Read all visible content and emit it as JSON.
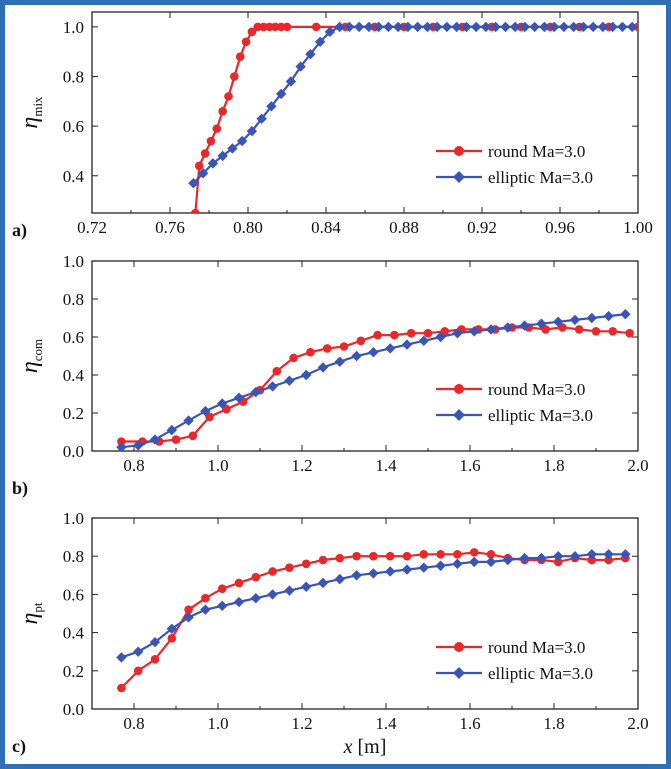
{
  "colors": {
    "round": "#e8282b",
    "elliptic": "#3a55b4",
    "frame": "#2f6fb5"
  },
  "chart_data": [
    {
      "panel_label": "a)",
      "type": "line",
      "ylabel": {
        "symbol": "η",
        "subscript": "mix"
      },
      "xlabel": "",
      "xlim": [
        0.72,
        1.0
      ],
      "ylim": [
        0.25,
        1.06
      ],
      "xticks": [
        "0.72",
        "0.76",
        "0.80",
        "0.84",
        "0.88",
        "0.92",
        "0.96",
        "1.00"
      ],
      "yticks": [
        "0.4",
        "0.6",
        "0.8",
        "1.0"
      ],
      "legend": {
        "position": "bottom-right",
        "entries": [
          "round Ma=3.0",
          "elliptic Ma=3.0"
        ]
      },
      "series": [
        {
          "name": "round Ma=3.0",
          "marker": "circle",
          "x": [
            0.773,
            0.775,
            0.778,
            0.781,
            0.784,
            0.787,
            0.79,
            0.793,
            0.796,
            0.799,
            0.802,
            0.805,
            0.808,
            0.811,
            0.814,
            0.817,
            0.82,
            0.835,
            0.85,
            0.865,
            0.88,
            0.895,
            0.91,
            0.925,
            0.94,
            0.955,
            0.97,
            0.985,
            1.0
          ],
          "y": [
            0.25,
            0.44,
            0.49,
            0.54,
            0.59,
            0.66,
            0.72,
            0.8,
            0.88,
            0.94,
            0.98,
            1.0,
            1.0,
            1.0,
            1.0,
            1.0,
            1.0,
            1.0,
            1.0,
            1.0,
            1.0,
            1.0,
            1.0,
            1.0,
            1.0,
            1.0,
            1.0,
            1.0,
            1.0
          ]
        },
        {
          "name": "elliptic Ma=3.0",
          "marker": "diamond",
          "x": [
            0.772,
            0.777,
            0.782,
            0.787,
            0.792,
            0.797,
            0.802,
            0.807,
            0.812,
            0.817,
            0.822,
            0.827,
            0.832,
            0.837,
            0.842,
            0.847,
            0.852,
            0.857,
            0.862,
            0.867,
            0.872,
            0.877,
            0.882,
            0.887,
            0.892,
            0.897,
            0.902,
            0.907,
            0.912,
            0.917,
            0.922,
            0.927,
            0.932,
            0.937,
            0.942,
            0.947,
            0.952,
            0.957,
            0.962,
            0.967,
            0.972,
            0.977,
            0.982,
            0.987,
            0.992,
            0.997
          ],
          "y": [
            0.37,
            0.41,
            0.45,
            0.48,
            0.51,
            0.54,
            0.58,
            0.63,
            0.68,
            0.73,
            0.78,
            0.84,
            0.89,
            0.94,
            0.98,
            1.0,
            1.0,
            1.0,
            1.0,
            1.0,
            1.0,
            1.0,
            1.0,
            1.0,
            1.0,
            1.0,
            1.0,
            1.0,
            1.0,
            1.0,
            1.0,
            1.0,
            1.0,
            1.0,
            1.0,
            1.0,
            1.0,
            1.0,
            1.0,
            1.0,
            1.0,
            1.0,
            1.0,
            1.0,
            1.0,
            1.0
          ]
        }
      ]
    },
    {
      "panel_label": "b)",
      "type": "line",
      "ylabel": {
        "symbol": "η",
        "subscript": "com"
      },
      "xlabel": "",
      "xlim": [
        0.7,
        2.0
      ],
      "ylim": [
        0.0,
        1.0
      ],
      "xticks": [
        "0.8",
        "1.0",
        "1.2",
        "1.4",
        "1.6",
        "1.8",
        "2.0"
      ],
      "yticks": [
        "0.0",
        "0.2",
        "0.4",
        "0.6",
        "0.8",
        "1.0"
      ],
      "legend": {
        "position": "bottom-right",
        "entries": [
          "round Ma=3.0",
          "elliptic Ma=3.0"
        ]
      },
      "series": [
        {
          "name": "round Ma=3.0",
          "marker": "circle",
          "x": [
            0.77,
            0.82,
            0.86,
            0.9,
            0.94,
            0.98,
            1.02,
            1.06,
            1.1,
            1.14,
            1.18,
            1.22,
            1.26,
            1.3,
            1.34,
            1.38,
            1.42,
            1.46,
            1.5,
            1.54,
            1.58,
            1.62,
            1.66,
            1.7,
            1.74,
            1.78,
            1.82,
            1.86,
            1.9,
            1.94,
            1.98
          ],
          "y": [
            0.05,
            0.05,
            0.05,
            0.06,
            0.08,
            0.18,
            0.22,
            0.26,
            0.32,
            0.42,
            0.49,
            0.52,
            0.54,
            0.55,
            0.58,
            0.61,
            0.61,
            0.62,
            0.62,
            0.63,
            0.64,
            0.64,
            0.64,
            0.65,
            0.65,
            0.64,
            0.65,
            0.64,
            0.63,
            0.63,
            0.62
          ]
        },
        {
          "name": "elliptic Ma=3.0",
          "marker": "diamond",
          "x": [
            0.77,
            0.81,
            0.85,
            0.89,
            0.93,
            0.97,
            1.01,
            1.05,
            1.09,
            1.13,
            1.17,
            1.21,
            1.25,
            1.29,
            1.33,
            1.37,
            1.41,
            1.45,
            1.49,
            1.53,
            1.57,
            1.61,
            1.65,
            1.69,
            1.73,
            1.77,
            1.81,
            1.85,
            1.89,
            1.93,
            1.97
          ],
          "y": [
            0.02,
            0.03,
            0.06,
            0.11,
            0.16,
            0.21,
            0.25,
            0.28,
            0.31,
            0.34,
            0.37,
            0.4,
            0.44,
            0.47,
            0.5,
            0.52,
            0.54,
            0.56,
            0.58,
            0.6,
            0.62,
            0.63,
            0.64,
            0.65,
            0.66,
            0.67,
            0.68,
            0.69,
            0.7,
            0.71,
            0.72
          ]
        }
      ]
    },
    {
      "panel_label": "c)",
      "type": "line",
      "ylabel": {
        "symbol": "η",
        "subscript": "pt"
      },
      "xlabel": {
        "var": "x",
        "unit": " [m]"
      },
      "xlim": [
        0.7,
        2.0
      ],
      "ylim": [
        0.0,
        1.0
      ],
      "xticks": [
        "0.8",
        "1.0",
        "1.2",
        "1.4",
        "1.6",
        "1.8",
        "2.0"
      ],
      "yticks": [
        "0.0",
        "0.2",
        "0.4",
        "0.6",
        "0.8",
        "1.0"
      ],
      "legend": {
        "position": "bottom-right",
        "entries": [
          "round Ma=3.0",
          "elliptic Ma=3.0"
        ]
      },
      "series": [
        {
          "name": "round Ma=3.0",
          "marker": "circle",
          "x": [
            0.77,
            0.81,
            0.85,
            0.89,
            0.93,
            0.97,
            1.01,
            1.05,
            1.09,
            1.13,
            1.17,
            1.21,
            1.25,
            1.29,
            1.33,
            1.37,
            1.41,
            1.45,
            1.49,
            1.53,
            1.57,
            1.61,
            1.65,
            1.69,
            1.73,
            1.77,
            1.81,
            1.85,
            1.89,
            1.93,
            1.97
          ],
          "y": [
            0.11,
            0.2,
            0.26,
            0.37,
            0.52,
            0.58,
            0.63,
            0.66,
            0.69,
            0.72,
            0.74,
            0.76,
            0.78,
            0.79,
            0.8,
            0.8,
            0.8,
            0.8,
            0.81,
            0.81,
            0.81,
            0.82,
            0.81,
            0.79,
            0.78,
            0.78,
            0.77,
            0.79,
            0.78,
            0.78,
            0.79
          ]
        },
        {
          "name": "elliptic Ma=3.0",
          "marker": "diamond",
          "x": [
            0.77,
            0.81,
            0.85,
            0.89,
            0.93,
            0.97,
            1.01,
            1.05,
            1.09,
            1.13,
            1.17,
            1.21,
            1.25,
            1.29,
            1.33,
            1.37,
            1.41,
            1.45,
            1.49,
            1.53,
            1.57,
            1.61,
            1.65,
            1.69,
            1.73,
            1.77,
            1.81,
            1.85,
            1.89,
            1.93,
            1.97
          ],
          "y": [
            0.27,
            0.3,
            0.35,
            0.42,
            0.48,
            0.52,
            0.54,
            0.56,
            0.58,
            0.6,
            0.62,
            0.64,
            0.66,
            0.68,
            0.7,
            0.71,
            0.72,
            0.73,
            0.74,
            0.75,
            0.76,
            0.77,
            0.77,
            0.78,
            0.79,
            0.79,
            0.8,
            0.8,
            0.81,
            0.81,
            0.81
          ]
        }
      ]
    }
  ]
}
